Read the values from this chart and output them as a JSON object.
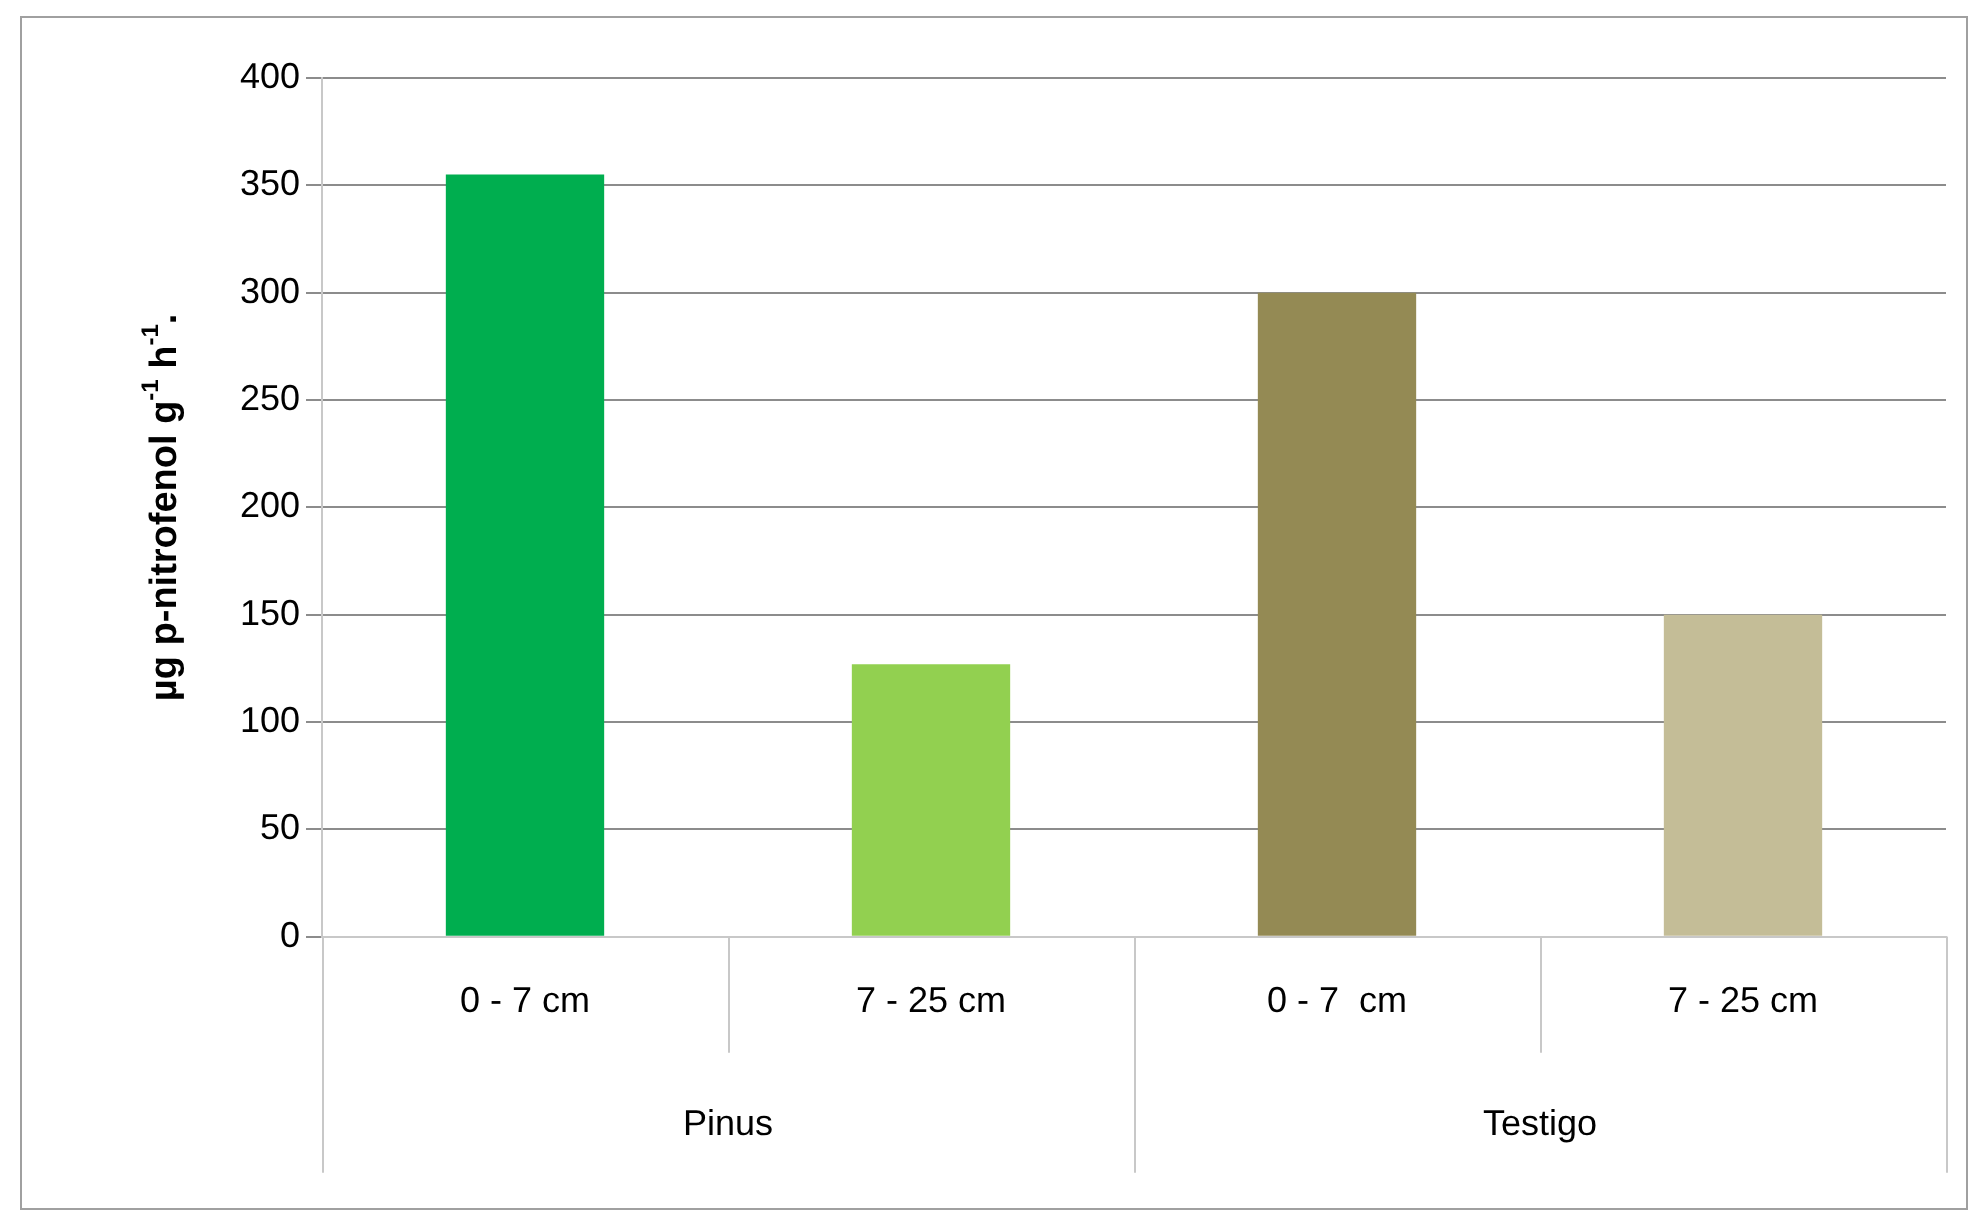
{
  "chart_data": {
    "type": "bar",
    "ylabel": "µg p-nitrofenol g$^{-1}$ h$^{-1}$.",
    "categories": [
      "0 - 7 cm",
      "7 - 25 cm",
      "0 - 7  cm",
      "7 - 25 cm"
    ],
    "values": [
      355,
      127,
      300,
      150
    ],
    "colors": [
      "#00ae4f",
      "#92d050",
      "#948a54",
      "#c4bd97"
    ],
    "annotations": [
      "Pinus",
      "Testigo"
    ],
    "ylim": [
      0,
      400
    ],
    "yticks": [
      0,
      50,
      100,
      150,
      200,
      250,
      300,
      350,
      400
    ],
    "grid": "y",
    "legend": false
  }
}
